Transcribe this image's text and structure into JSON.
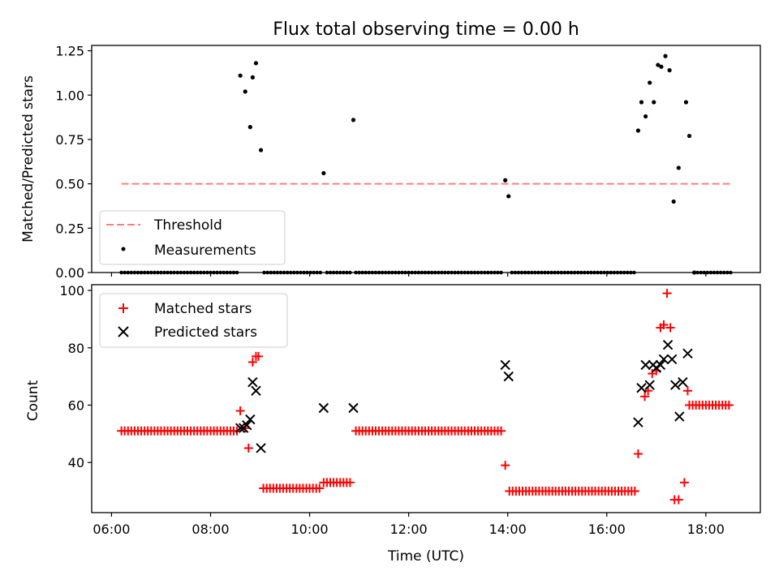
{
  "chart_data": [
    {
      "type": "scatter",
      "title": "Flux total observing time = 0.00 h",
      "xlabel": "",
      "ylabel": "Matched/Predicted stars",
      "xlim": [
        "05:36",
        "19:06"
      ],
      "ylim": [
        0,
        1.28
      ],
      "x_ticks": [
        "06:00",
        "08:00",
        "10:00",
        "12:00",
        "14:00",
        "16:00",
        "18:00"
      ],
      "y_ticks": [
        "0.00",
        "0.25",
        "0.50",
        "0.75",
        "1.00",
        "1.25"
      ],
      "legend_position": "lower-left",
      "series": [
        {
          "name": "Threshold",
          "kind": "dashed-line",
          "color": "#ff7f7f",
          "x": [
            "06:12",
            "18:30"
          ],
          "y": [
            0.5,
            0.5
          ]
        },
        {
          "name": "Measurements",
          "kind": "points",
          "color": "#000000",
          "x": [
            "08:36",
            "08:42",
            "08:48",
            "08:51",
            "08:55",
            "09:01",
            "10:17",
            "10:53",
            "13:57",
            "14:01",
            "16:38",
            "16:42",
            "16:47",
            "16:52",
            "16:57",
            "17:02",
            "17:06",
            "17:11",
            "17:16",
            "17:21",
            "17:27",
            "17:36",
            "17:40",
            "17:46"
          ],
          "y": [
            1.11,
            1.02,
            0.82,
            1.1,
            1.18,
            0.69,
            0.56,
            0.86,
            0.52,
            0.43,
            0.8,
            0.96,
            0.88,
            1.07,
            0.96,
            1.17,
            1.16,
            1.22,
            1.14,
            0.4,
            0.59,
            0.96,
            0.77,
            0.0
          ],
          "zero_segments": [
            [
              "06:12",
              "08:33"
            ],
            [
              "09:05",
              "10:13"
            ],
            [
              "10:21",
              "10:50"
            ],
            [
              "10:56",
              "13:54"
            ],
            [
              "14:05",
              "16:35"
            ],
            [
              "17:46",
              "18:30"
            ]
          ]
        }
      ]
    },
    {
      "type": "scatter",
      "title": "",
      "xlabel": "Time (UTC)",
      "ylabel": "Count",
      "xlim": [
        "05:36",
        "19:06"
      ],
      "ylim": [
        22.5,
        102
      ],
      "x_ticks": [
        "06:00",
        "08:00",
        "10:00",
        "12:00",
        "14:00",
        "16:00",
        "18:00"
      ],
      "y_ticks": [
        "40",
        "60",
        "80",
        "100"
      ],
      "legend_position": "upper-left",
      "series": [
        {
          "name": "Matched stars",
          "kind": "plus",
          "color": "#ff0000",
          "x": [
            "08:36",
            "08:42",
            "08:46",
            "08:51",
            "08:55",
            "08:58",
            "13:57",
            "16:38",
            "16:46",
            "16:50",
            "16:55",
            "17:00",
            "17:05",
            "17:09",
            "17:13",
            "17:17",
            "17:22",
            "17:27",
            "17:34",
            "17:38",
            "17:40"
          ],
          "y": [
            58,
            52,
            45,
            75,
            77,
            77,
            39,
            43,
            63,
            65,
            71,
            72,
            87,
            88,
            99,
            87,
            27,
            27,
            33,
            65,
            60
          ],
          "flat_segments": [
            {
              "x": [
                "06:12",
                "08:33"
              ],
              "y": 51
            },
            {
              "x": [
                "09:04",
                "10:13"
              ],
              "y": 31
            },
            {
              "x": [
                "10:17",
                "10:50"
              ],
              "y": 33
            },
            {
              "x": [
                "10:56",
                "13:54"
              ],
              "y": 51
            },
            {
              "x": [
                "14:02",
                "16:35"
              ],
              "y": 30
            },
            {
              "x": [
                "17:44",
                "18:30"
              ],
              "y": 60
            }
          ]
        },
        {
          "name": "Predicted stars",
          "kind": "x",
          "color": "#000000",
          "x": [
            "08:36",
            "08:40",
            "08:44",
            "08:48",
            "08:51",
            "08:55",
            "09:01",
            "10:17",
            "10:53",
            "13:57",
            "14:01",
            "16:38",
            "16:42",
            "16:47",
            "16:52",
            "16:56",
            "17:00",
            "17:05",
            "17:09",
            "17:14",
            "17:19",
            "17:23",
            "17:28",
            "17:32",
            "17:38"
          ],
          "y": [
            52,
            52,
            53,
            55,
            68,
            65,
            45,
            59,
            59,
            74,
            70,
            54,
            66,
            74,
            67,
            74,
            73,
            74,
            76,
            81,
            76,
            67,
            56,
            68,
            78
          ]
        }
      ]
    }
  ]
}
